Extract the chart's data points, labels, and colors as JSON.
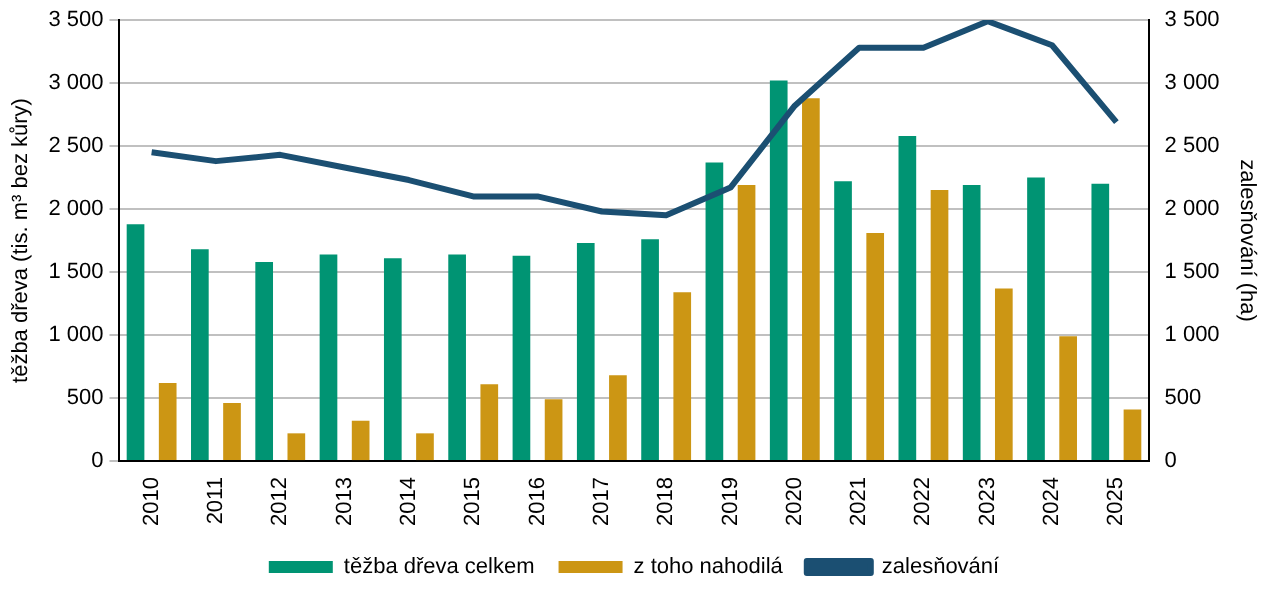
{
  "chart_data": {
    "type": "bar",
    "ylabel": "těžba dřeva (tis. m³ bez kůry)",
    "y2label": "zalesňování (ha)",
    "categories": [
      "2010",
      "2011",
      "2012",
      "2013",
      "2014",
      "2015",
      "2016",
      "2017",
      "2018",
      "2019",
      "2020",
      "2021",
      "2022",
      "2023",
      "2024",
      "2025"
    ],
    "series": [
      {
        "name": "těžba dřeva celkem",
        "color": "#009473",
        "values": [
          1880,
          1680,
          1580,
          1640,
          1610,
          1640,
          1630,
          1730,
          1760,
          2370,
          3020,
          2220,
          2580,
          2190,
          2250,
          2200
        ]
      },
      {
        "name": "z toho nahodilá",
        "color": "#cc9614",
        "values": [
          620,
          460,
          220,
          320,
          220,
          610,
          490,
          680,
          1340,
          2190,
          2880,
          1810,
          2150,
          1370,
          990,
          410
        ]
      },
      {
        "name": "zalesňování",
        "type": "line",
        "axis": "y2",
        "color": "#1b4f72",
        "values": [
          2450,
          2380,
          2430,
          2330,
          2230,
          2100,
          2100,
          1980,
          1950,
          2170,
          2820,
          3280,
          3280,
          3490,
          3300,
          2690
        ]
      }
    ],
    "ylim": [
      0,
      3500
    ],
    "yticks": [
      {
        "value": 0,
        "label": "0"
      },
      {
        "value": 500,
        "label": "500"
      },
      {
        "value": 1000,
        "label": "1 000"
      },
      {
        "value": 1500,
        "label": "1 500"
      },
      {
        "value": 2000,
        "label": "2 000"
      },
      {
        "value": 2500,
        "label": "2 500"
      },
      {
        "value": 3000,
        "label": "3 000"
      },
      {
        "value": 3500,
        "label": "3 500"
      }
    ],
    "y2lim": [
      0,
      3500
    ],
    "y2ticks": [
      {
        "value": 0,
        "label": "0"
      },
      {
        "value": 500,
        "label": "500"
      },
      {
        "value": 1000,
        "label": "1 000"
      },
      {
        "value": 1500,
        "label": "1 500"
      },
      {
        "value": 2000,
        "label": "2 000"
      },
      {
        "value": 2500,
        "label": "2 500"
      },
      {
        "value": 3000,
        "label": "3 000"
      },
      {
        "value": 3500,
        "label": "3 500"
      }
    ],
    "grid": "y",
    "legend": "bottom",
    "marker": "none"
  }
}
